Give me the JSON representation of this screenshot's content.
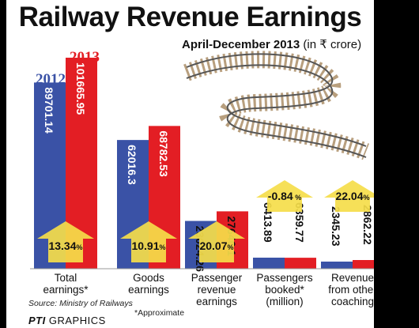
{
  "title": "Railway Revenue Earnings",
  "subtitle": "April-December 2013",
  "unit": "(in ₹ crore)",
  "colors": {
    "y2012": "#3a52a6",
    "y2013": "#e31e24",
    "arrow": "#f5dd4a",
    "background": "#ffffff"
  },
  "footer": {
    "source": "Source: Ministry of Railways",
    "note": "*Approximate",
    "brand_prefix": "PTI",
    "brand_suffix": "GRAPHICS"
  },
  "chart_data": {
    "type": "bar",
    "title": "Railway Revenue Earnings",
    "series": [
      {
        "name": "2012",
        "values": [
          89701.14,
          62016.3,
          23024.26,
          6413.89,
          2345.23
        ],
        "labels": [
          "89701.14",
          "62016.3",
          "23024.26",
          "6413.89",
          "2345.23"
        ]
      },
      {
        "name": "2013",
        "values": [
          101665.95,
          68782.53,
          27646.1,
          6359.77,
          2862.22
        ],
        "labels": [
          "101665.95",
          "68782.53",
          "27646.1",
          "6359.77",
          "2862.22"
        ]
      }
    ],
    "categories": [
      [
        "Total",
        "earnings*"
      ],
      [
        "Goods",
        "earnings"
      ],
      [
        "Passenger",
        "revenue",
        "earnings"
      ],
      [
        "Passengers",
        "booked*",
        "(million)"
      ],
      [
        "Revenue",
        "from other",
        "coaching"
      ]
    ],
    "change": [
      {
        "label": "13.34",
        "suffix": "%",
        "direction": "up"
      },
      {
        "label": "10.91",
        "suffix": "%",
        "direction": "up"
      },
      {
        "label": "20.07",
        "suffix": "%",
        "direction": "up"
      },
      {
        "label": "-0.84",
        "suffix": " %",
        "direction": "down"
      },
      {
        "label": "22.04",
        "suffix": "%",
        "direction": "up"
      }
    ],
    "legend": [
      "2012",
      "2013"
    ]
  }
}
